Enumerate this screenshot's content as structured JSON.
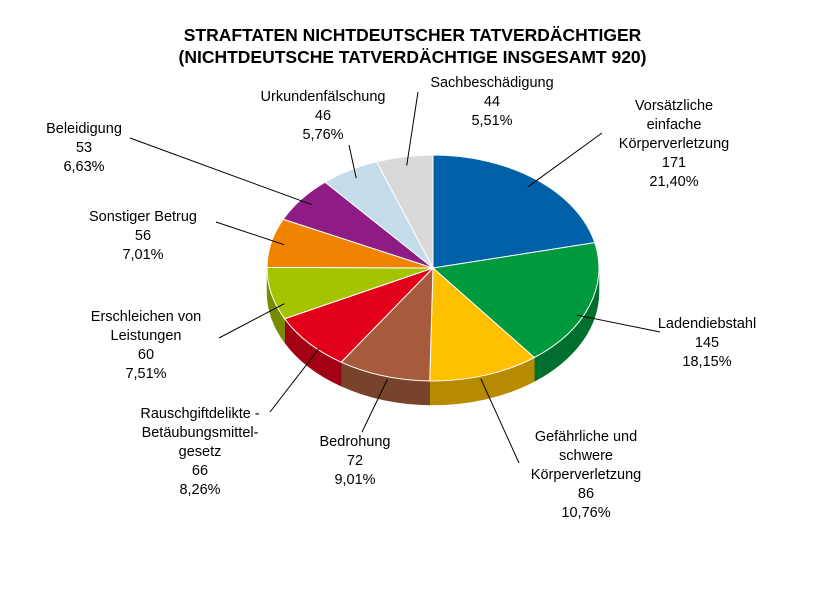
{
  "chart_data": {
    "type": "pie",
    "title": "STRAFTATEN NICHTDEUTSCHER TATVERDÄCHTIGER",
    "subtitle": "(NICHTDEUTSCHE TATVERDÄCHTIGE INSGESAMT 920)",
    "slices": [
      {
        "label": [
          "Vorsätzliche",
          "einfache",
          "Körperverletzung"
        ],
        "value": 171,
        "percent": "21,40%",
        "color": "#0060A8"
      },
      {
        "label": [
          "Ladendiebstahl"
        ],
        "value": 145,
        "percent": "18,15%",
        "color": "#009A3E"
      },
      {
        "label": [
          "Gefährliche und",
          "schwere",
          "Körperverletzung"
        ],
        "value": 86,
        "percent": "10,76%",
        "color": "#FFC000"
      },
      {
        "label": [
          "Bedrohung"
        ],
        "value": 72,
        "percent": "9,01%",
        "color": "#A65C3C"
      },
      {
        "label": [
          "Rauschgiftdelikte -",
          "Betäubungsmittel-",
          "gesetz"
        ],
        "value": 66,
        "percent": "8,26%",
        "color": "#E2001A"
      },
      {
        "label": [
          "Erschleichen von",
          "Leistungen"
        ],
        "value": 60,
        "percent": "7,51%",
        "color": "#A5C400"
      },
      {
        "label": [
          "Sonstiger Betrug"
        ],
        "value": 56,
        "percent": "7,01%",
        "color": "#F08400"
      },
      {
        "label": [
          "Beleidigung"
        ],
        "value": 53,
        "percent": "6,63%",
        "color": "#8E1C84"
      },
      {
        "label": [
          "Urkundenfälschung"
        ],
        "value": 46,
        "percent": "5,76%",
        "color": "#C5DDEB"
      },
      {
        "label": [
          "Sachbeschädigung"
        ],
        "value": 44,
        "percent": "5,51%",
        "color": "#D9D9D9"
      }
    ]
  }
}
